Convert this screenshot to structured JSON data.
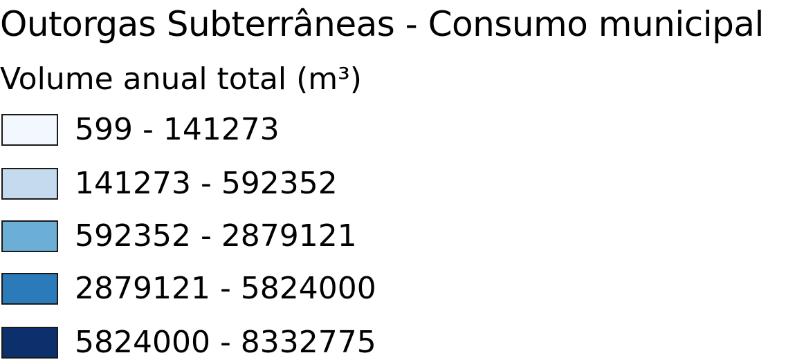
{
  "legend": {
    "title": "Outorgas Subterrâneas - Consumo municipal",
    "subtitle": "Volume anual total (m³)",
    "items": [
      {
        "label": "599 - 141273",
        "color": "#f3f8fe"
      },
      {
        "label": "141273 - 592352",
        "color": "#c6daef"
      },
      {
        "label": "592352 - 2879121",
        "color": "#6baed6"
      },
      {
        "label": "2879121 - 5824000",
        "color": "#2b7bba"
      },
      {
        "label": "5824000 - 8332775",
        "color": "#0b306b"
      }
    ]
  }
}
